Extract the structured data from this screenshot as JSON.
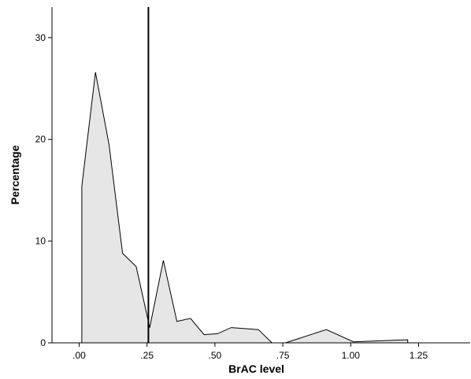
{
  "chart_data": {
    "type": "area",
    "xlabel": "BrAC level",
    "ylabel": "Percentage",
    "xlim": [
      -0.1,
      1.44
    ],
    "ylim": [
      0,
      33
    ],
    "x_ticks": [
      0.0,
      0.25,
      0.5,
      0.75,
      1.0,
      1.25
    ],
    "x_tick_labels": [
      ".00",
      ".25",
      ".50",
      ".75",
      "1.00",
      "1.25"
    ],
    "y_ticks": [
      0,
      10,
      20,
      30
    ],
    "y_tick_labels": [
      "0",
      "10",
      "20",
      "30"
    ],
    "grid": false,
    "fill_color": "#e6e6e6",
    "line_color": "#000000",
    "reference_line_x": 0.255,
    "series": [
      {
        "x": [
          0.01,
          0.01,
          0.06,
          0.11,
          0.16,
          0.21,
          0.26,
          0.31,
          0.36,
          0.41,
          0.46,
          0.51,
          0.56,
          0.61,
          0.66,
          0.71,
          0.76,
          0.91,
          1.01,
          1.21,
          1.21
        ],
        "y": [
          0,
          15.4,
          26.6,
          19.5,
          8.8,
          7.5,
          1.5,
          8.1,
          2.1,
          2.4,
          0.8,
          0.9,
          1.5,
          1.4,
          1.3,
          0,
          0,
          1.3,
          0.1,
          0.3,
          0
        ]
      }
    ]
  }
}
